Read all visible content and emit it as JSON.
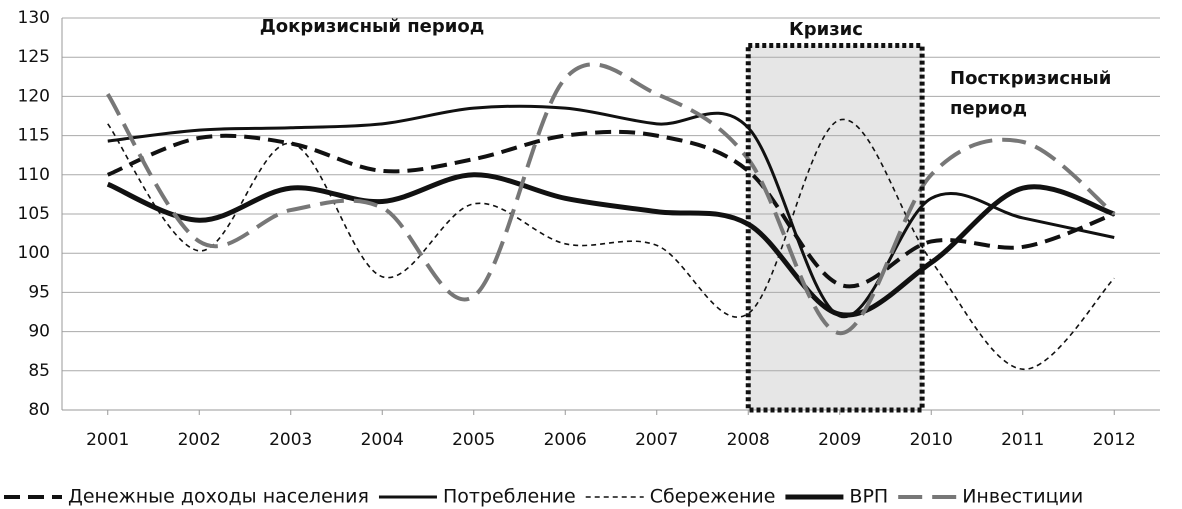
{
  "chart_data": {
    "type": "line",
    "annotations": [
      "Докризисный период",
      "Кризис",
      "Посткризисный период"
    ],
    "x": [
      2001,
      2002,
      2003,
      2004,
      2005,
      2006,
      2007,
      2008,
      2009,
      2010,
      2011,
      2012
    ],
    "xlim": [
      2000.5,
      2012.5
    ],
    "xticks": [
      2001,
      2002,
      2003,
      2004,
      2005,
      2006,
      2007,
      2008,
      2009,
      2010,
      2011,
      2012
    ],
    "ylim": [
      80,
      130
    ],
    "yticks": [
      80,
      85,
      90,
      95,
      100,
      105,
      110,
      115,
      120,
      125,
      130
    ],
    "grid": true,
    "highlight": {
      "x": [
        2008,
        2009.9
      ],
      "y": [
        80,
        126.5
      ]
    },
    "series": [
      {
        "name": "Денежные доходы населения",
        "color": "#111111",
        "style": "dashed",
        "values": [
          110,
          114.7,
          114,
          110.5,
          112,
          115,
          115,
          110.5,
          96,
          101.5,
          100.8,
          105
        ]
      },
      {
        "name": "Потребление",
        "color": "#111111",
        "style": "solid",
        "values": [
          114.3,
          115.7,
          116,
          116.5,
          118.5,
          118.5,
          116.5,
          116,
          92,
          107,
          104.5,
          102
        ]
      },
      {
        "name": "Сбережение",
        "color": "#111111",
        "style": "dotted",
        "values": [
          116.5,
          100.3,
          114,
          97,
          106.3,
          101.2,
          101,
          92.3,
          117,
          99,
          85.2,
          96.8
        ]
      },
      {
        "name": "ВРП",
        "color": "#111111",
        "style": "thick",
        "values": [
          108.8,
          104.2,
          108.3,
          106.6,
          110,
          107,
          105.3,
          103.7,
          92.2,
          98.8,
          108.3,
          105
        ]
      },
      {
        "name": "Инвестиции",
        "color": "#777777",
        "style": "longdash",
        "values": [
          120.3,
          101.5,
          105.5,
          105.8,
          94.5,
          122.3,
          120.3,
          112,
          89.8,
          110,
          114.2,
          105
        ]
      }
    ]
  }
}
